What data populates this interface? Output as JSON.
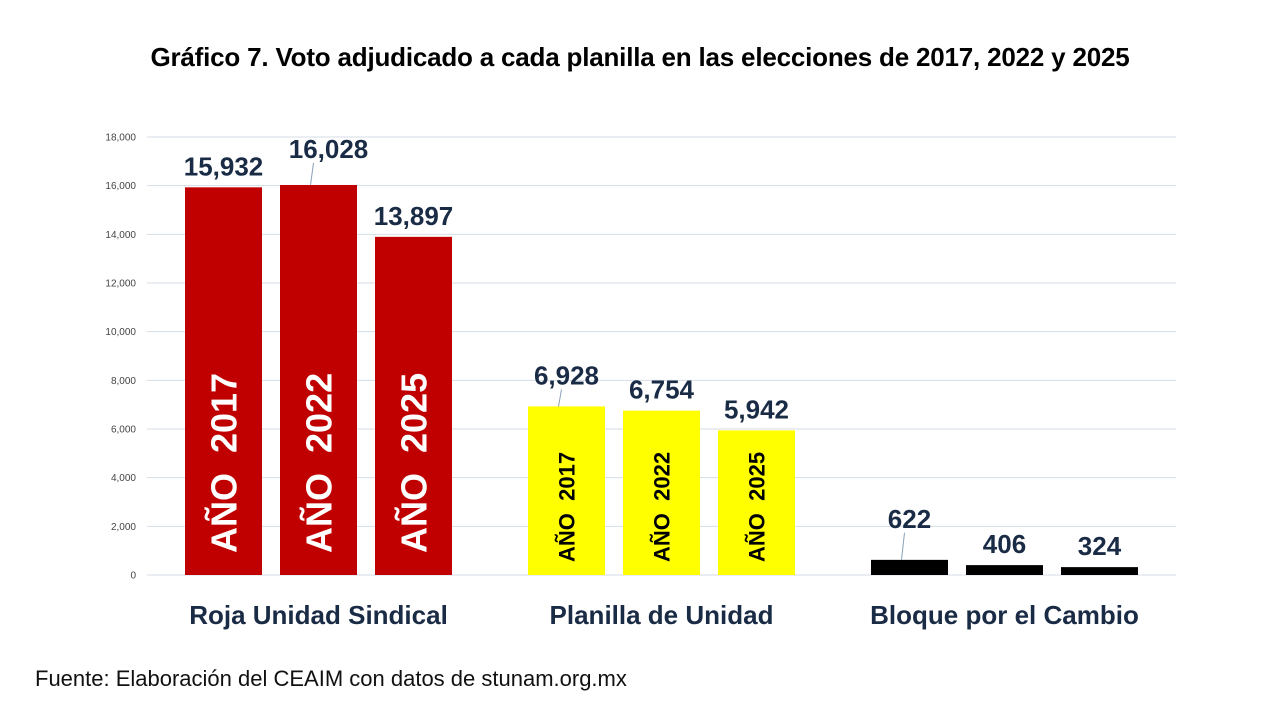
{
  "chart_data": {
    "type": "bar",
    "title": "Gráfico 7. Voto adjudicado a cada planilla en las elecciones de 2017, 2022 y 2025",
    "xlabel": "",
    "ylabel": "",
    "ylim": [
      0,
      18000
    ],
    "yticks": [
      0,
      2000,
      4000,
      6000,
      8000,
      10000,
      12000,
      14000,
      16000,
      18000
    ],
    "ytick_labels": [
      "0",
      "2,000",
      "4,000",
      "6,000",
      "8,000",
      "10,000",
      "12,000",
      "14,000",
      "16,000",
      "18,000"
    ],
    "grid": true,
    "legend": "none",
    "categories": [
      "Roja Unidad Sindical",
      "Planilla de Unidad",
      "Bloque por el Cambio"
    ],
    "series": [
      {
        "name": "AÑO 2017",
        "values": [
          15932,
          6928,
          622
        ],
        "labels": [
          "15,932",
          "6,928",
          "622"
        ]
      },
      {
        "name": "AÑO 2022",
        "values": [
          16028,
          6754,
          406
        ],
        "labels": [
          "16,028",
          "6,754",
          "406"
        ]
      },
      {
        "name": "AÑO 2025",
        "values": [
          13897,
          5942,
          324
        ],
        "labels": [
          "13,897",
          "5,942",
          "324"
        ]
      }
    ],
    "category_colors": [
      "#c00000",
      "#ffff00",
      "#000000"
    ],
    "in_bar_labels": [
      [
        "AÑO  2017",
        "AÑO  2022",
        "AÑO  2025"
      ],
      [
        "AÑO  2017",
        "AÑO  2022",
        "AÑO  2025"
      ],
      [
        "",
        "",
        ""
      ]
    ]
  },
  "source": "Fuente: Elaboración del CEAIM con datos de stunam.org.mx"
}
